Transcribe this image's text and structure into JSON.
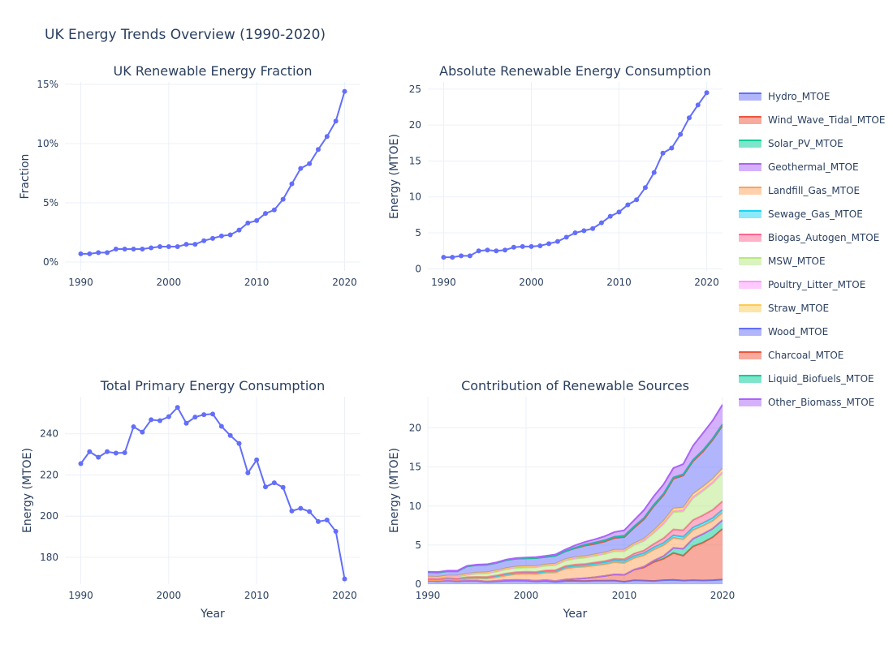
{
  "title": "UK Energy Trends Overview (1990-2020)",
  "chart_data": [
    {
      "type": "line",
      "title": "UK Renewable Energy Fraction",
      "xlabel": "",
      "ylabel": "Fraction",
      "xlim": [
        1988.2,
        2021.8
      ],
      "ylim": [
        -0.0075,
        0.152
      ],
      "xticks": [
        1990,
        2000,
        2010,
        2020
      ],
      "yticks": [
        0,
        0.05,
        0.1,
        0.15
      ],
      "ytick_labels": [
        "0%",
        "5%",
        "10%",
        "15%"
      ],
      "series": [
        {
          "color": "#636efa",
          "x": [
            1990,
            1991,
            1992,
            1993,
            1994,
            1995,
            1996,
            1997,
            1998,
            1999,
            2000,
            2001,
            2002,
            2003,
            2004,
            2005,
            2006,
            2007,
            2008,
            2009,
            2010,
            2011,
            2012,
            2013,
            2014,
            2015,
            2016,
            2017,
            2018,
            2019,
            2020
          ],
          "y": [
            0.007,
            0.007,
            0.008,
            0.008,
            0.011,
            0.011,
            0.011,
            0.011,
            0.012,
            0.013,
            0.013,
            0.013,
            0.015,
            0.015,
            0.018,
            0.02,
            0.022,
            0.023,
            0.027,
            0.033,
            0.035,
            0.041,
            0.044,
            0.053,
            0.066,
            0.079,
            0.083,
            0.095,
            0.106,
            0.119,
            0.144
          ]
        }
      ]
    },
    {
      "type": "line",
      "title": "Absolute Renewable Energy Consumption",
      "xlabel": "",
      "ylabel": "Energy (MTOE)",
      "xlim": [
        1988.2,
        2021.8
      ],
      "ylim": [
        -0.3,
        26
      ],
      "xticks": [
        1990,
        2000,
        2010,
        2020
      ],
      "yticks": [
        0,
        5,
        10,
        15,
        20,
        25
      ],
      "series": [
        {
          "color": "#636efa",
          "x": [
            1990,
            1991,
            1992,
            1993,
            1994,
            1995,
            1996,
            1997,
            1998,
            1999,
            2000,
            2001,
            2002,
            2003,
            2004,
            2005,
            2006,
            2007,
            2008,
            2009,
            2010,
            2011,
            2012,
            2013,
            2014,
            2015,
            2016,
            2017,
            2018,
            2019,
            2020
          ],
          "y": [
            1.6,
            1.6,
            1.8,
            1.8,
            2.5,
            2.6,
            2.5,
            2.6,
            3.0,
            3.1,
            3.1,
            3.2,
            3.5,
            3.8,
            4.4,
            5.0,
            5.3,
            5.6,
            6.4,
            7.3,
            7.9,
            8.9,
            9.6,
            11.3,
            13.4,
            16.1,
            16.8,
            18.7,
            21.0,
            22.8,
            24.5
          ]
        }
      ]
    },
    {
      "type": "line",
      "title": "Total Primary Energy Consumption",
      "xlabel": "Year",
      "ylabel": "Energy (MTOE)",
      "xlim": [
        1988.2,
        2021.8
      ],
      "ylim": [
        167,
        258
      ],
      "xticks": [
        1990,
        2000,
        2010,
        2020
      ],
      "yticks": [
        180,
        200,
        220,
        240
      ],
      "series": [
        {
          "color": "#636efa",
          "x": [
            1990,
            1991,
            1992,
            1993,
            1994,
            1995,
            1996,
            1997,
            1998,
            1999,
            2000,
            2001,
            2002,
            2003,
            2004,
            2005,
            2006,
            2007,
            2008,
            2009,
            2010,
            2011,
            2012,
            2013,
            2014,
            2015,
            2016,
            2017,
            2018,
            2019,
            2020
          ],
          "y": [
            225.5,
            231.3,
            228.6,
            231.3,
            230.6,
            230.8,
            243.4,
            240.8,
            246.8,
            246.4,
            248.3,
            252.8,
            245.1,
            248.1,
            249.3,
            249.6,
            243.6,
            239.2,
            235.3,
            221.0,
            227.3,
            214.2,
            216.2,
            214.0,
            202.5,
            203.8,
            202.2,
            197.4,
            198.1,
            192.6,
            169.5
          ]
        }
      ]
    },
    {
      "type": "area",
      "stacked": true,
      "title": "Contribution of Renewable Sources",
      "xlabel": "Year",
      "ylabel": "Energy (MTOE)",
      "xlim": [
        1990,
        2020
      ],
      "ylim": [
        0,
        24
      ],
      "xticks": [
        1990,
        2000,
        2010,
        2020
      ],
      "yticks": [
        0,
        5,
        10,
        15,
        20
      ],
      "x": [
        1990,
        1991,
        1992,
        1993,
        1994,
        1995,
        1996,
        1997,
        1998,
        1999,
        2000,
        2001,
        2002,
        2003,
        2004,
        2005,
        2006,
        2007,
        2008,
        2009,
        2010,
        2011,
        2012,
        2013,
        2014,
        2015,
        2016,
        2017,
        2018,
        2019,
        2020
      ],
      "series": [
        {
          "name": "Hydro_MTOE",
          "color": "#636efa",
          "values": [
            0.45,
            0.39,
            0.46,
            0.37,
            0.44,
            0.42,
            0.29,
            0.36,
            0.44,
            0.46,
            0.44,
            0.35,
            0.41,
            0.28,
            0.42,
            0.42,
            0.39,
            0.44,
            0.44,
            0.45,
            0.31,
            0.49,
            0.45,
            0.4,
            0.51,
            0.54,
            0.46,
            0.5,
            0.47,
            0.51,
            0.58
          ]
        },
        {
          "name": "Wind_Wave_Tidal_MTOE",
          "color": "#ef553b",
          "values": [
            0.0,
            0.0,
            0.02,
            0.02,
            0.03,
            0.03,
            0.04,
            0.06,
            0.08,
            0.07,
            0.08,
            0.08,
            0.11,
            0.11,
            0.17,
            0.25,
            0.36,
            0.45,
            0.61,
            0.8,
            0.88,
            1.35,
            1.69,
            2.43,
            2.74,
            3.45,
            3.18,
            4.33,
            4.85,
            5.5,
            6.5
          ]
        },
        {
          "name": "Solar_PV_MTOE",
          "color": "#00cc96",
          "values": [
            0.0,
            0.0,
            0.0,
            0.0,
            0.0,
            0.0,
            0.0,
            0.0,
            0.0,
            0.0,
            0.0,
            0.0,
            0.0,
            0.0,
            0.0,
            0.0,
            0.0,
            0.0,
            0.0,
            0.0,
            0.01,
            0.02,
            0.1,
            0.18,
            0.35,
            0.65,
            0.89,
            0.99,
            1.1,
            1.1,
            1.12
          ]
        },
        {
          "name": "Geothermal_MTOE",
          "color": "#ab63fa",
          "values": [
            0.0,
            0.0,
            0.0,
            0.0,
            0.0,
            0.0,
            0.0,
            0.0,
            0.0,
            0.0,
            0.0,
            0.0,
            0.0,
            0.0,
            0.0,
            0.0,
            0.0,
            0.0,
            0.0,
            0.0,
            0.0,
            0.0,
            0.0,
            0.0,
            0.0,
            0.0,
            0.0,
            0.0,
            0.0,
            0.0,
            0.0
          ]
        },
        {
          "name": "Landfill_Gas_MTOE",
          "color": "#ffa15a",
          "values": [
            0.1,
            0.12,
            0.15,
            0.18,
            0.24,
            0.3,
            0.38,
            0.47,
            0.6,
            0.75,
            0.8,
            0.85,
            0.95,
            1.1,
            1.4,
            1.5,
            1.48,
            1.5,
            1.5,
            1.55,
            1.5,
            1.48,
            1.45,
            1.4,
            1.38,
            1.3,
            1.2,
            1.1,
            1.05,
            1.0,
            0.95
          ]
        },
        {
          "name": "Sewage_Gas_MTOE",
          "color": "#19d3f3",
          "values": [
            0.1,
            0.1,
            0.11,
            0.11,
            0.12,
            0.13,
            0.14,
            0.15,
            0.16,
            0.17,
            0.17,
            0.18,
            0.18,
            0.19,
            0.2,
            0.21,
            0.22,
            0.23,
            0.24,
            0.25,
            0.26,
            0.27,
            0.28,
            0.29,
            0.3,
            0.32,
            0.33,
            0.34,
            0.35,
            0.36,
            0.37
          ]
        },
        {
          "name": "Biogas_Autogen_MTOE",
          "color": "#ff6692",
          "values": [
            0.05,
            0.05,
            0.05,
            0.05,
            0.06,
            0.06,
            0.07,
            0.07,
            0.08,
            0.08,
            0.09,
            0.1,
            0.1,
            0.11,
            0.12,
            0.13,
            0.14,
            0.15,
            0.16,
            0.2,
            0.25,
            0.3,
            0.35,
            0.45,
            0.6,
            0.75,
            0.85,
            0.95,
            1.0,
            1.05,
            1.1
          ]
        },
        {
          "name": "MSW_MTOE",
          "color": "#b6e880",
          "values": [
            0.2,
            0.2,
            0.22,
            0.24,
            0.3,
            0.4,
            0.45,
            0.5,
            0.55,
            0.55,
            0.55,
            0.6,
            0.6,
            0.65,
            0.7,
            0.75,
            0.8,
            0.85,
            0.9,
            0.95,
            1.0,
            1.1,
            1.2,
            1.4,
            1.8,
            2.2,
            2.4,
            2.8,
            3.1,
            3.4,
            3.6
          ]
        },
        {
          "name": "Poultry_Litter_MTOE",
          "color": "#ff97ff",
          "values": [
            0.0,
            0.0,
            0.02,
            0.05,
            0.06,
            0.07,
            0.08,
            0.08,
            0.09,
            0.1,
            0.1,
            0.1,
            0.1,
            0.11,
            0.11,
            0.11,
            0.11,
            0.11,
            0.12,
            0.12,
            0.12,
            0.12,
            0.13,
            0.13,
            0.13,
            0.13,
            0.14,
            0.14,
            0.14,
            0.14,
            0.15
          ]
        },
        {
          "name": "Straw_MTOE",
          "color": "#fecb52",
          "values": [
            0.07,
            0.07,
            0.07,
            0.07,
            0.07,
            0.07,
            0.07,
            0.07,
            0.07,
            0.07,
            0.07,
            0.07,
            0.07,
            0.07,
            0.07,
            0.08,
            0.08,
            0.08,
            0.08,
            0.08,
            0.09,
            0.09,
            0.15,
            0.2,
            0.3,
            0.35,
            0.35,
            0.4,
            0.4,
            0.42,
            0.45
          ]
        },
        {
          "name": "Wood_MTOE",
          "color": "#636efa",
          "values": [
            0.55,
            0.55,
            0.55,
            0.55,
            0.95,
            0.95,
            0.95,
            0.95,
            1.0,
            1.0,
            1.0,
            1.0,
            0.95,
            1.0,
            1.0,
            1.15,
            1.35,
            1.35,
            1.4,
            1.5,
            1.6,
            2.0,
            2.5,
            3.1,
            3.3,
            3.8,
            4.1,
            4.2,
            4.5,
            5.0,
            5.5
          ]
        },
        {
          "name": "Charcoal_MTOE",
          "color": "#ef553b",
          "values": [
            0.02,
            0.02,
            0.02,
            0.02,
            0.02,
            0.02,
            0.02,
            0.02,
            0.02,
            0.02,
            0.02,
            0.02,
            0.02,
            0.02,
            0.02,
            0.02,
            0.02,
            0.02,
            0.02,
            0.02,
            0.02,
            0.02,
            0.02,
            0.02,
            0.02,
            0.02,
            0.02,
            0.02,
            0.02,
            0.02,
            0.02
          ]
        },
        {
          "name": "Liquid_Biofuels_MTOE",
          "color": "#00cc96",
          "values": [
            0.0,
            0.0,
            0.0,
            0.0,
            0.0,
            0.0,
            0.0,
            0.0,
            0.0,
            0.0,
            0.0,
            0.0,
            0.0,
            0.0,
            0.02,
            0.05,
            0.1,
            0.15,
            0.15,
            0.15,
            0.15,
            0.15,
            0.15,
            0.15,
            0.15,
            0.15,
            0.15,
            0.15,
            0.15,
            0.15,
            0.15
          ]
        },
        {
          "name": "Other_Biomass_MTOE",
          "color": "#ab63fa",
          "values": [
            0.05,
            0.05,
            0.05,
            0.05,
            0.05,
            0.05,
            0.05,
            0.05,
            0.06,
            0.07,
            0.08,
            0.1,
            0.12,
            0.15,
            0.2,
            0.3,
            0.35,
            0.4,
            0.5,
            0.6,
            0.7,
            0.8,
            1.0,
            1.1,
            1.2,
            1.2,
            1.3,
            1.8,
            2.2,
            2.3,
            2.5
          ]
        }
      ]
    }
  ]
}
